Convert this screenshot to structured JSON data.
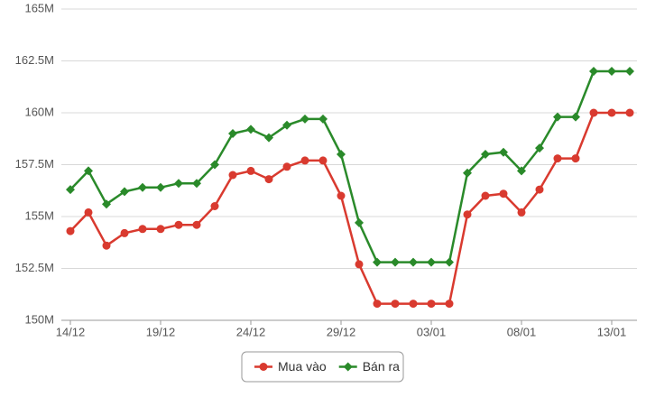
{
  "chart_data": {
    "type": "line",
    "categories": [
      "14/12",
      null,
      null,
      null,
      null,
      "19/12",
      null,
      null,
      null,
      null,
      "24/12",
      null,
      null,
      null,
      null,
      "29/12",
      null,
      null,
      null,
      null,
      "03/01",
      null,
      null,
      null,
      null,
      "08/01",
      null,
      null,
      null,
      null,
      "13/01",
      null
    ],
    "series": [
      {
        "name": "Mua vào",
        "color": "#d93a2f",
        "marker": "circle",
        "values": [
          154.3,
          155.2,
          153.6,
          154.2,
          154.4,
          154.4,
          154.6,
          154.6,
          155.5,
          157.0,
          157.2,
          156.8,
          157.4,
          157.7,
          157.7,
          156.0,
          152.7,
          150.8,
          150.8,
          150.8,
          150.8,
          150.8,
          155.1,
          156.0,
          156.1,
          155.2,
          156.3,
          157.8,
          157.8,
          160.0,
          160.0,
          160.0
        ]
      },
      {
        "name": "Bán ra",
        "color": "#2a8a2a",
        "marker": "diamond",
        "values": [
          156.3,
          157.2,
          155.6,
          156.2,
          156.4,
          156.4,
          156.6,
          156.6,
          157.5,
          159.0,
          159.2,
          158.8,
          159.4,
          159.7,
          159.7,
          158.0,
          154.7,
          152.8,
          152.8,
          152.8,
          152.8,
          152.8,
          157.1,
          158.0,
          158.1,
          157.2,
          158.3,
          159.8,
          159.8,
          162.0,
          162.0,
          162.0
        ]
      }
    ],
    "ylim": [
      150,
      165
    ],
    "yticks": [
      {
        "value": 150,
        "label": "150M"
      },
      {
        "value": 152.5,
        "label": "152.5M"
      },
      {
        "value": 155,
        "label": "155M"
      },
      {
        "value": 157.5,
        "label": "157.5M"
      },
      {
        "value": 160,
        "label": "160M"
      },
      {
        "value": 162.5,
        "label": "162.5M"
      },
      {
        "value": 165,
        "label": "165M"
      }
    ],
    "grid": true,
    "legend": "bottom"
  }
}
